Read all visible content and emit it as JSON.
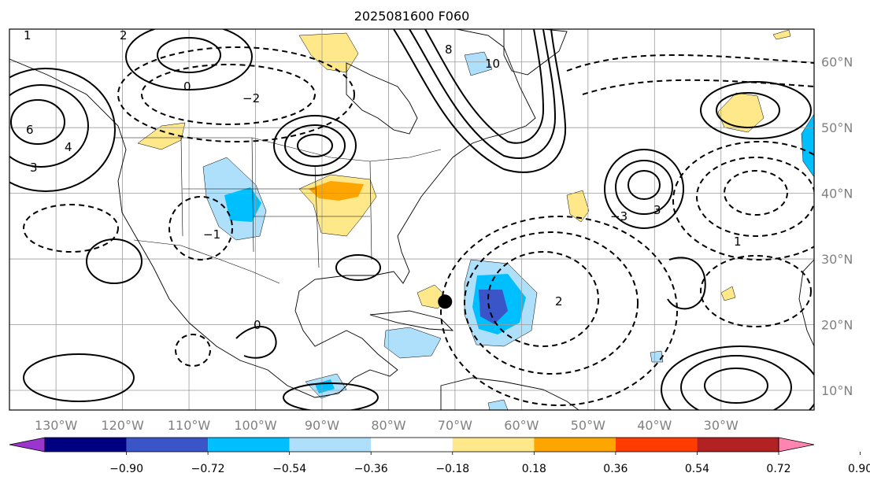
{
  "map": {
    "title": "2025081600 F060",
    "lon_labels": [
      "130°W",
      "120°W",
      "110°W",
      "100°W",
      "90°W",
      "80°W",
      "70°W",
      "60°W",
      "50°W",
      "40°W",
      "30°W"
    ],
    "lat_labels": [
      "60°N",
      "50°N",
      "40°N",
      "30°N",
      "20°N",
      "10°N"
    ],
    "projection_extent": {
      "lon_min": -137,
      "lon_max": -16,
      "lat_min": 7,
      "lat_max": 65
    },
    "gridlines": true,
    "colorbar": {
      "ticks": [
        "−0.90",
        "−0.72",
        "−0.54",
        "−0.36",
        "−0.18",
        "0.18",
        "0.36",
        "0.54",
        "0.72",
        "0.90"
      ],
      "colors": [
        "#9a35d0",
        "#000080",
        "#3a55c8",
        "#00bfff",
        "#aee0fb",
        "#ffffff",
        "#ffe88a",
        "#ffa500",
        "#ff3d00",
        "#b22222",
        "#ff85b0"
      ],
      "extend": "both"
    },
    "contour_labels": [
      "1",
      "2",
      "3",
      "4",
      "0",
      "−1",
      "−2",
      "−3",
      "6",
      "8",
      "10",
      "2",
      "3",
      "0",
      "1"
    ],
    "feature_marker": {
      "lon": -71.5,
      "lat": 23.5,
      "color": "#000000"
    }
  }
}
